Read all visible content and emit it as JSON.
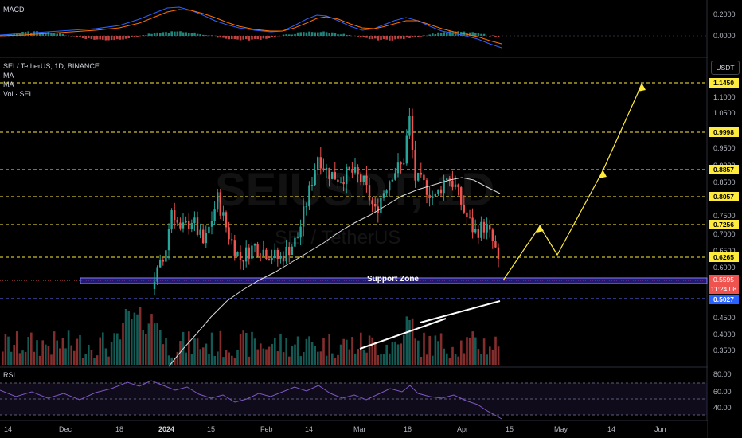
{
  "macd_panel": {
    "label": "MACD",
    "ticks": [
      "0.2000",
      "0.0000"
    ]
  },
  "main_panel": {
    "title": "SEI / TetherUS, 1D, BINANCE",
    "indicators": [
      "MA",
      "MA",
      "Vol · SEI"
    ],
    "watermark_big": "SEIUSDT, 1D",
    "watermark_small": "SEI / TetherUS",
    "currency_button": "USDT",
    "price_ticks": [
      "1.1000",
      "1.0500",
      "0.9500",
      "0.9000",
      "0.8500",
      "0.7500",
      "0.7000",
      "0.6500",
      "0.6000",
      "0.4500",
      "0.4000",
      "0.3500"
    ],
    "level_tags": [
      "1.1450",
      "0.9998",
      "0.8857",
      "0.8057",
      "0.7256",
      "0.6265"
    ],
    "current_price": "0.5595",
    "countdown": "11:24:08",
    "support_tag": "0.5027",
    "support_zone_label": "Support Zone",
    "colors": {
      "up": "#26a69a",
      "down": "#ef5350",
      "level": "#ffeb3b",
      "zone": "#5b4dff",
      "projection": "#ffeb3b"
    }
  },
  "rsi_panel": {
    "label": "RSI",
    "ticks": [
      "80.00",
      "60.00",
      "40.00"
    ]
  },
  "time_axis": [
    "14",
    "Dec",
    "18",
    "2024",
    "15",
    "Feb",
    "14",
    "Mar",
    "18",
    "Apr",
    "15",
    "May",
    "14",
    "Jun"
  ]
}
